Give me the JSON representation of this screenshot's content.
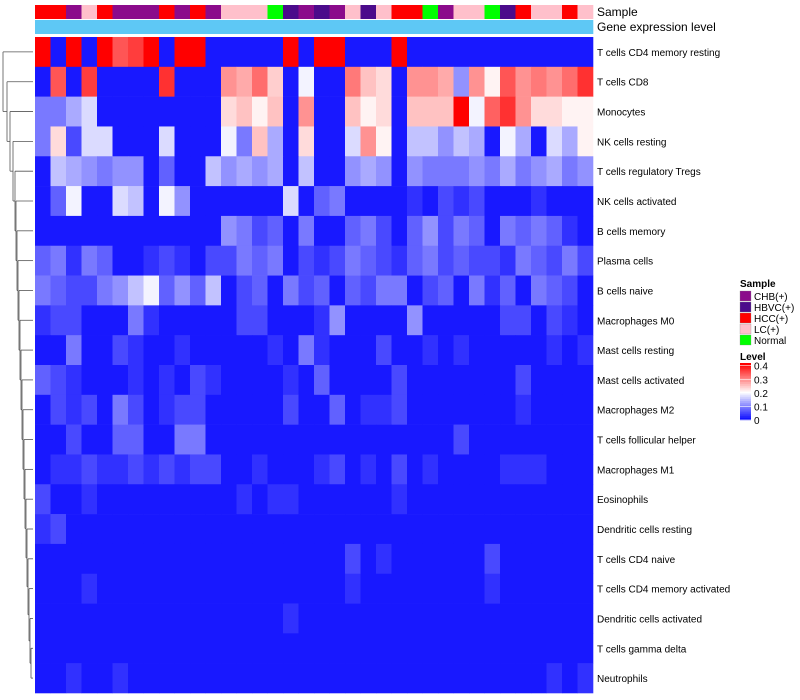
{
  "chart_data": {
    "type": "heatmap",
    "title": "",
    "annotation_track_labels": [
      "Sample",
      "Gene expression level"
    ],
    "row_labels": [
      "T cells CD4 memory resting",
      "T cells CD8",
      "Monocytes",
      "NK cells resting",
      "T cells regulatory  Tregs",
      "NK cells activated",
      "B cells memory",
      "Plasma cells",
      "B cells naive",
      "Macrophages M0",
      "Mast cells resting",
      "Mast cells activated",
      "Macrophages M2",
      "T cells follicular helper",
      "Macrophages M1",
      "Eosinophils",
      "Dendritic cells resting",
      "T cells CD4 naive",
      "T cells CD4 memory activated",
      "Dendritic cells activated",
      "T cells gamma delta",
      "Neutrophils"
    ],
    "sample_groups": [
      "HCC(+)",
      "HCC(+)",
      "CHB(+)",
      "LC(+)",
      "HCC(+)",
      "CHB(+)",
      "CHB(+)",
      "CHB(+)",
      "HCC(+)",
      "CHB(+)",
      "HCC(+)",
      "CHB(+)",
      "LC(+)",
      "LC(+)",
      "LC(+)",
      "Normal",
      "HBVC(+)",
      "CHB(+)",
      "HBVC(+)",
      "CHB(+)",
      "LC(+)",
      "HBVC(+)",
      "LC(+)",
      "HCC(+)",
      "HCC(+)",
      "Normal",
      "CHB(+)",
      "LC(+)",
      "LC(+)",
      "Normal",
      "HBVC(+)",
      "HCC(+)",
      "LC(+)",
      "LC(+)",
      "HCC(+)",
      "LC(+)"
    ],
    "expression_level_values": [
      0.1,
      0.1,
      0.1,
      0.1,
      0.1,
      0.1,
      0.1,
      0.1,
      0.1,
      0.1,
      0.1,
      0.1,
      0.1,
      0.1,
      0.1,
      0.1,
      0.1,
      0.1,
      0.1,
      0.1,
      0.1,
      0.1,
      0.1,
      0.1,
      0.1,
      0.1,
      0.1,
      0.1,
      0.1,
      0.1,
      0.1,
      0.1,
      0.1,
      0.1,
      0.1,
      0.1
    ],
    "values": [
      [
        0.42,
        0.02,
        0.42,
        0.02,
        0.42,
        0.35,
        0.37,
        0.42,
        0.02,
        0.42,
        0.42,
        0.02,
        0.02,
        0.02,
        0.02,
        0.02,
        0.42,
        0.02,
        0.42,
        0.42,
        0.02,
        0.02,
        0.02,
        0.42,
        0.02,
        0.02,
        0.02,
        0.02,
        0.02,
        0.02,
        0.02,
        0.02,
        0.02,
        0.02,
        0.02,
        0.02
      ],
      [
        0.02,
        0.35,
        0.02,
        0.37,
        0.02,
        0.02,
        0.02,
        0.02,
        0.38,
        0.02,
        0.02,
        0.02,
        0.3,
        0.28,
        0.33,
        0.25,
        0.02,
        0.2,
        0.02,
        0.02,
        0.32,
        0.26,
        0.24,
        0.02,
        0.3,
        0.3,
        0.28,
        0.12,
        0.3,
        0.22,
        0.35,
        0.3,
        0.32,
        0.3,
        0.33,
        0.38
      ],
      [
        0.1,
        0.1,
        0.14,
        0.18,
        0.02,
        0.02,
        0.02,
        0.02,
        0.02,
        0.02,
        0.02,
        0.02,
        0.24,
        0.26,
        0.22,
        0.26,
        0.02,
        0.3,
        0.02,
        0.02,
        0.26,
        0.22,
        0.24,
        0.02,
        0.26,
        0.26,
        0.26,
        0.42,
        0.2,
        0.34,
        0.38,
        0.3,
        0.24,
        0.24,
        0.22,
        0.22
      ],
      [
        0.1,
        0.24,
        0.06,
        0.18,
        0.18,
        0.02,
        0.02,
        0.02,
        0.18,
        0.02,
        0.02,
        0.02,
        0.2,
        0.1,
        0.26,
        0.14,
        0.02,
        0.24,
        0.02,
        0.02,
        0.18,
        0.3,
        0.22,
        0.02,
        0.16,
        0.16,
        0.12,
        0.16,
        0.14,
        0.02,
        0.2,
        0.14,
        0.02,
        0.18,
        0.14,
        0.22
      ],
      [
        0.02,
        0.16,
        0.14,
        0.12,
        0.1,
        0.12,
        0.12,
        0.02,
        0.08,
        0.02,
        0.02,
        0.16,
        0.12,
        0.14,
        0.12,
        0.14,
        0.02,
        0.16,
        0.02,
        0.02,
        0.12,
        0.14,
        0.12,
        0.02,
        0.12,
        0.1,
        0.1,
        0.1,
        0.12,
        0.1,
        0.14,
        0.1,
        0.12,
        0.14,
        0.1,
        0.12
      ],
      [
        0.02,
        0.08,
        0.2,
        0.02,
        0.02,
        0.18,
        0.16,
        0.02,
        0.2,
        0.12,
        0.02,
        0.02,
        0.02,
        0.02,
        0.02,
        0.02,
        0.18,
        0.02,
        0.08,
        0.1,
        0.02,
        0.02,
        0.02,
        0.02,
        0.04,
        0.02,
        0.06,
        0.04,
        0.06,
        0.02,
        0.02,
        0.02,
        0.04,
        0.02,
        0.02,
        0.02
      ],
      [
        0.02,
        0.02,
        0.02,
        0.02,
        0.02,
        0.02,
        0.02,
        0.02,
        0.02,
        0.02,
        0.02,
        0.02,
        0.12,
        0.1,
        0.06,
        0.08,
        0.02,
        0.1,
        0.02,
        0.02,
        0.08,
        0.1,
        0.06,
        0.02,
        0.08,
        0.12,
        0.06,
        0.1,
        0.08,
        0.02,
        0.1,
        0.08,
        0.1,
        0.08,
        0.04,
        0.02
      ],
      [
        0.08,
        0.1,
        0.04,
        0.1,
        0.08,
        0.02,
        0.02,
        0.04,
        0.06,
        0.04,
        0.02,
        0.06,
        0.06,
        0.1,
        0.08,
        0.1,
        0.02,
        0.06,
        0.04,
        0.06,
        0.1,
        0.08,
        0.06,
        0.04,
        0.08,
        0.1,
        0.06,
        0.08,
        0.06,
        0.06,
        0.04,
        0.1,
        0.08,
        0.06,
        0.1,
        0.06
      ],
      [
        0.1,
        0.08,
        0.06,
        0.06,
        0.1,
        0.12,
        0.16,
        0.2,
        0.08,
        0.12,
        0.08,
        0.16,
        0.02,
        0.06,
        0.08,
        0.02,
        0.1,
        0.06,
        0.08,
        0.02,
        0.08,
        0.06,
        0.1,
        0.1,
        0.02,
        0.06,
        0.08,
        0.02,
        0.1,
        0.04,
        0.08,
        0.02,
        0.1,
        0.08,
        0.06,
        0.02
      ],
      [
        0.04,
        0.06,
        0.06,
        0.02,
        0.02,
        0.02,
        0.1,
        0.04,
        0.02,
        0.02,
        0.02,
        0.02,
        0.02,
        0.06,
        0.06,
        0.02,
        0.02,
        0.02,
        0.04,
        0.12,
        0.02,
        0.02,
        0.02,
        0.02,
        0.12,
        0.02,
        0.02,
        0.02,
        0.02,
        0.02,
        0.06,
        0.06,
        0.02,
        0.06,
        0.04,
        0.02
      ],
      [
        0.02,
        0.02,
        0.1,
        0.02,
        0.02,
        0.06,
        0.04,
        0.02,
        0.02,
        0.04,
        0.02,
        0.02,
        0.02,
        0.02,
        0.02,
        0.04,
        0.02,
        0.1,
        0.04,
        0.02,
        0.02,
        0.02,
        0.06,
        0.02,
        0.02,
        0.04,
        0.02,
        0.04,
        0.02,
        0.02,
        0.02,
        0.02,
        0.02,
        0.04,
        0.02,
        0.04
      ],
      [
        0.08,
        0.06,
        0.04,
        0.02,
        0.02,
        0.02,
        0.04,
        0.02,
        0.04,
        0.02,
        0.06,
        0.04,
        0.02,
        0.02,
        0.02,
        0.02,
        0.04,
        0.02,
        0.08,
        0.02,
        0.02,
        0.02,
        0.02,
        0.06,
        0.02,
        0.02,
        0.02,
        0.02,
        0.02,
        0.02,
        0.02,
        0.06,
        0.02,
        0.02,
        0.02,
        0.02
      ],
      [
        0.02,
        0.06,
        0.04,
        0.06,
        0.02,
        0.1,
        0.06,
        0.02,
        0.04,
        0.06,
        0.06,
        0.02,
        0.02,
        0.02,
        0.02,
        0.02,
        0.06,
        0.02,
        0.02,
        0.08,
        0.02,
        0.04,
        0.04,
        0.06,
        0.02,
        0.02,
        0.02,
        0.02,
        0.02,
        0.02,
        0.02,
        0.04,
        0.02,
        0.02,
        0.02,
        0.02
      ],
      [
        0.02,
        0.02,
        0.06,
        0.02,
        0.02,
        0.08,
        0.08,
        0.02,
        0.02,
        0.1,
        0.1,
        0.02,
        0.02,
        0.02,
        0.02,
        0.02,
        0.02,
        0.02,
        0.02,
        0.02,
        0.02,
        0.02,
        0.02,
        0.02,
        0.02,
        0.02,
        0.02,
        0.06,
        0.02,
        0.02,
        0.02,
        0.02,
        0.02,
        0.02,
        0.02,
        0.02
      ],
      [
        0.02,
        0.04,
        0.04,
        0.06,
        0.04,
        0.04,
        0.06,
        0.04,
        0.06,
        0.04,
        0.06,
        0.06,
        0.02,
        0.02,
        0.04,
        0.02,
        0.02,
        0.02,
        0.04,
        0.06,
        0.02,
        0.04,
        0.02,
        0.06,
        0.02,
        0.04,
        0.02,
        0.02,
        0.02,
        0.02,
        0.04,
        0.04,
        0.04,
        0.02,
        0.02,
        0.02
      ],
      [
        0.06,
        0.02,
        0.02,
        0.04,
        0.02,
        0.02,
        0.02,
        0.02,
        0.02,
        0.02,
        0.02,
        0.02,
        0.02,
        0.04,
        0.02,
        0.04,
        0.04,
        0.02,
        0.02,
        0.02,
        0.02,
        0.02,
        0.02,
        0.04,
        0.02,
        0.02,
        0.02,
        0.02,
        0.02,
        0.02,
        0.02,
        0.02,
        0.02,
        0.02,
        0.02,
        0.02
      ],
      [
        0.04,
        0.06,
        0.02,
        0.02,
        0.02,
        0.02,
        0.02,
        0.02,
        0.02,
        0.02,
        0.02,
        0.02,
        0.02,
        0.02,
        0.02,
        0.02,
        0.02,
        0.02,
        0.02,
        0.02,
        0.02,
        0.02,
        0.02,
        0.02,
        0.02,
        0.02,
        0.02,
        0.02,
        0.02,
        0.02,
        0.02,
        0.02,
        0.02,
        0.02,
        0.02,
        0.02
      ],
      [
        0.02,
        0.02,
        0.02,
        0.02,
        0.02,
        0.02,
        0.02,
        0.02,
        0.02,
        0.02,
        0.02,
        0.02,
        0.02,
        0.02,
        0.02,
        0.02,
        0.02,
        0.02,
        0.02,
        0.02,
        0.06,
        0.02,
        0.04,
        0.02,
        0.02,
        0.02,
        0.02,
        0.02,
        0.02,
        0.06,
        0.02,
        0.02,
        0.02,
        0.02,
        0.02,
        0.02
      ],
      [
        0.02,
        0.02,
        0.02,
        0.04,
        0.02,
        0.02,
        0.02,
        0.02,
        0.02,
        0.02,
        0.02,
        0.02,
        0.02,
        0.02,
        0.02,
        0.02,
        0.02,
        0.02,
        0.02,
        0.02,
        0.04,
        0.02,
        0.02,
        0.02,
        0.02,
        0.02,
        0.02,
        0.02,
        0.02,
        0.04,
        0.02,
        0.02,
        0.02,
        0.02,
        0.02,
        0.02
      ],
      [
        0.02,
        0.02,
        0.02,
        0.02,
        0.02,
        0.02,
        0.02,
        0.02,
        0.02,
        0.02,
        0.02,
        0.02,
        0.02,
        0.02,
        0.02,
        0.02,
        0.04,
        0.02,
        0.02,
        0.02,
        0.02,
        0.02,
        0.02,
        0.02,
        0.02,
        0.02,
        0.02,
        0.02,
        0.02,
        0.02,
        0.02,
        0.02,
        0.02,
        0.02,
        0.02,
        0.02
      ],
      [
        0.02,
        0.02,
        0.02,
        0.02,
        0.02,
        0.02,
        0.02,
        0.02,
        0.02,
        0.02,
        0.02,
        0.02,
        0.02,
        0.02,
        0.02,
        0.02,
        0.02,
        0.02,
        0.02,
        0.02,
        0.02,
        0.02,
        0.02,
        0.02,
        0.02,
        0.02,
        0.02,
        0.02,
        0.02,
        0.02,
        0.02,
        0.02,
        0.02,
        0.02,
        0.02,
        0.02
      ],
      [
        0.02,
        0.02,
        0.04,
        0.02,
        0.02,
        0.04,
        0.02,
        0.02,
        0.02,
        0.02,
        0.02,
        0.02,
        0.02,
        0.02,
        0.02,
        0.02,
        0.02,
        0.02,
        0.02,
        0.02,
        0.02,
        0.02,
        0.02,
        0.02,
        0.02,
        0.02,
        0.02,
        0.02,
        0.02,
        0.02,
        0.02,
        0.02,
        0.02,
        0.04,
        0.02,
        0.04
      ]
    ],
    "legend_sample": {
      "title": "Sample",
      "entries": [
        {
          "label": "CHB(+)",
          "color": "#8b0b8b"
        },
        {
          "label": "HBVC(+)",
          "color": "#4b0b8b"
        },
        {
          "label": "HCC(+)",
          "color": "#ff0000"
        },
        {
          "label": "LC(+)",
          "color": "#ffc0cb"
        },
        {
          "label": "Normal",
          "color": "#00ff00"
        }
      ]
    },
    "legend_level": {
      "title": "Level",
      "ticks": [
        "0.4",
        "0.3",
        "0.2",
        "0.1",
        "0"
      ],
      "range": [
        0,
        0.42
      ]
    },
    "colors": {
      "low": "#0000ff",
      "mid": "#ffffff",
      "high": "#ff0000",
      "expression_track": "#5ec8f5"
    }
  }
}
